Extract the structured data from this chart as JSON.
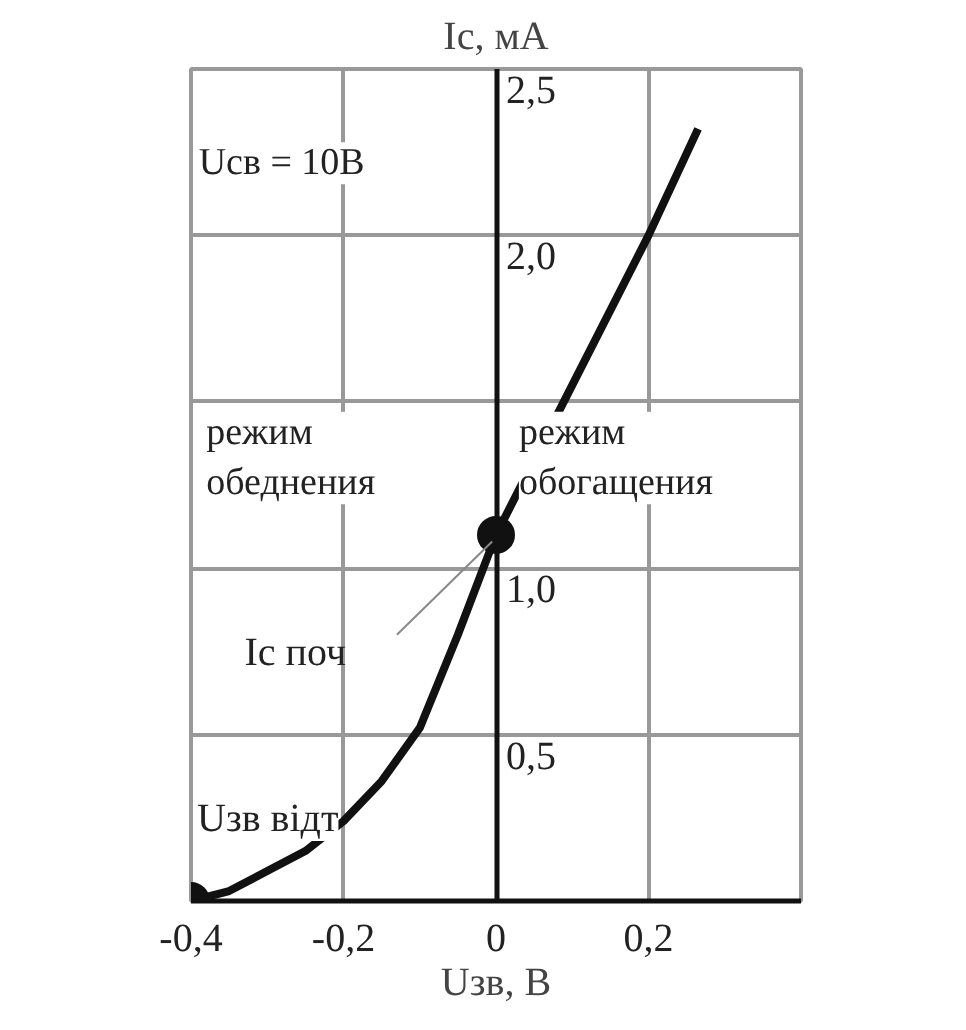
{
  "chart_data": {
    "type": "line",
    "xlabel": "Uзв, В",
    "ylabel": "Ic, мА",
    "xlim": [
      -0.4,
      0.4
    ],
    "ylim": [
      0,
      2.5
    ],
    "xticks": [
      {
        "value": -0.4,
        "label": "-0,4"
      },
      {
        "value": -0.2,
        "label": "-0,2"
      },
      0,
      {
        "value": 0.2,
        "label": "0,2"
      }
    ],
    "yticks": [
      {
        "value": 0.5,
        "label": "0,5"
      },
      {
        "value": 1.0,
        "label": "1,0"
      },
      {
        "value": 1.5,
        "label": null
      },
      {
        "value": 2.0,
        "label": "2,0"
      },
      {
        "value": 2.5,
        "label": "2,5"
      }
    ],
    "grid": true,
    "line_style": "solid",
    "series": [
      {
        "color": "#111111",
        "x": [
          -0.4,
          -0.35,
          -0.3,
          -0.25,
          -0.2,
          -0.15,
          -0.1,
          -0.05,
          0,
          0.1,
          0.2,
          0.265
        ],
        "values": [
          0,
          0.03,
          0.09,
          0.15,
          0.24,
          0.36,
          0.52,
          0.8,
          1.1,
          1.55,
          2.0,
          2.32
        ]
      },
      {
        "type": "scatter",
        "marker": "circle",
        "color": "#111111",
        "x": [
          -0.4,
          0
        ],
        "values": [
          0,
          1.1
        ]
      }
    ],
    "annotations": [
      "Ucв = 10В",
      "режим\nобеднения",
      "режим\nобогащения",
      {
        "text": "Ic поч",
        "x": 0,
        "y": 1.1
      },
      {
        "text": "Uзв відт",
        "x": -0.4,
        "y": 0
      }
    ]
  }
}
